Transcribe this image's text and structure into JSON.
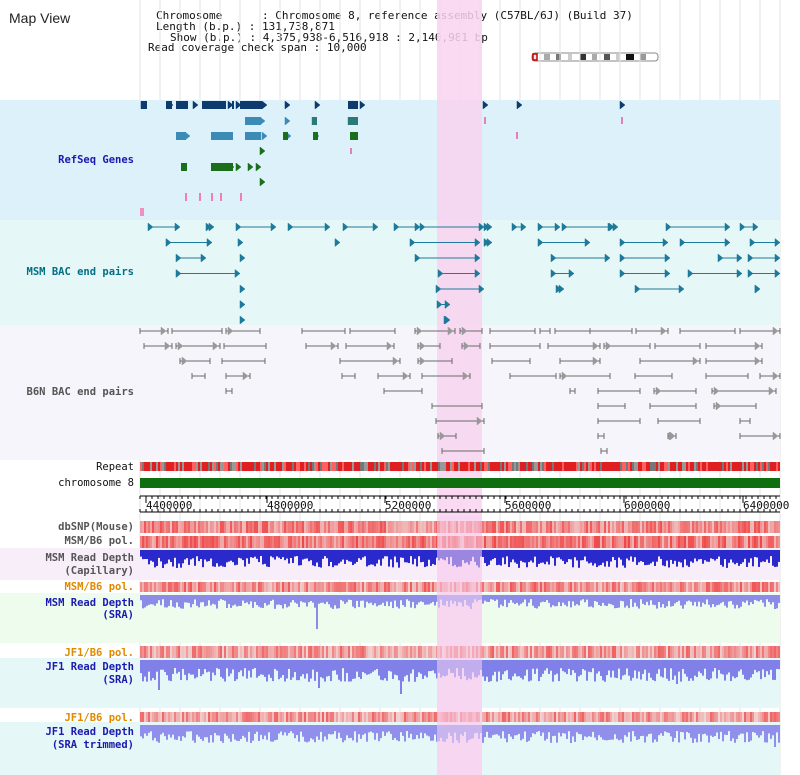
{
  "window": {
    "title": "Map View"
  },
  "header": {
    "chromosome_label": "Chromosome",
    "chromosome_value": "Chromosome 8, reference assembly (C57BL/6J) (Build 37)",
    "length_label": "Length (b.p.)",
    "length_value": "131,738,871",
    "show_label": "Show (b.p.)",
    "show_value": "4,375,938-6,516,918 : 2,140,981 bp",
    "coverage_label": "Read coverage check span",
    "coverage_value": "10,000"
  },
  "tracks": {
    "refseq": "RefSeq Genes",
    "msm_bac": "MSM BAC end pairs",
    "b6n_bac": "B6N BAC end pairs",
    "repeat": "Repeat",
    "chromosome": "chromosome 8",
    "dbsnp": "dbSNP(Mouse)",
    "msm_b6_pol_1": "MSM/B6 pol.",
    "msm_read_depth_cap_1": "MSM Read Depth",
    "msm_read_depth_cap_2": "(Capillary)",
    "msm_b6_pol_2": "MSM/B6 pol.",
    "msm_read_depth_sra_1": "MSM Read Depth",
    "msm_read_depth_sra_2": "(SRA)",
    "jf1_b6_pol_1": "JF1/B6 pol.",
    "jf1_read_depth_sra_1": "JF1 Read Depth",
    "jf1_read_depth_sra_2": "(SRA)",
    "jf1_b6_pol_2": "JF1/B6 pol.",
    "jf1_read_depth_trim_1": "JF1 Read Depth",
    "jf1_read_depth_trim_2": "(SRA trimmed)"
  },
  "axis": {
    "ticks": [
      "4400000",
      "4800000",
      "5200000",
      "5600000",
      "6000000",
      "6400000"
    ]
  },
  "colors": {
    "highlight": "#f8d3f0",
    "refseq_bg": "#dcf1f9",
    "msm_bg": "#e6f7f7",
    "b6n_bg": "#f5f5fb",
    "refseq_dark": "#0d3b6e",
    "refseq_mid": "#3b8bb5",
    "refseq_green": "#1b6e1b",
    "msm_line": "#1e7a9a",
    "b6n_line": "#6a6a6a",
    "depth_blue": "#3333cc",
    "depth_light": "#9999ee",
    "label_blue": "#1a1ab0",
    "label_orange": "#e08a00",
    "label_teal": "#006f87",
    "chrom_green": "#0f6e0f"
  }
}
